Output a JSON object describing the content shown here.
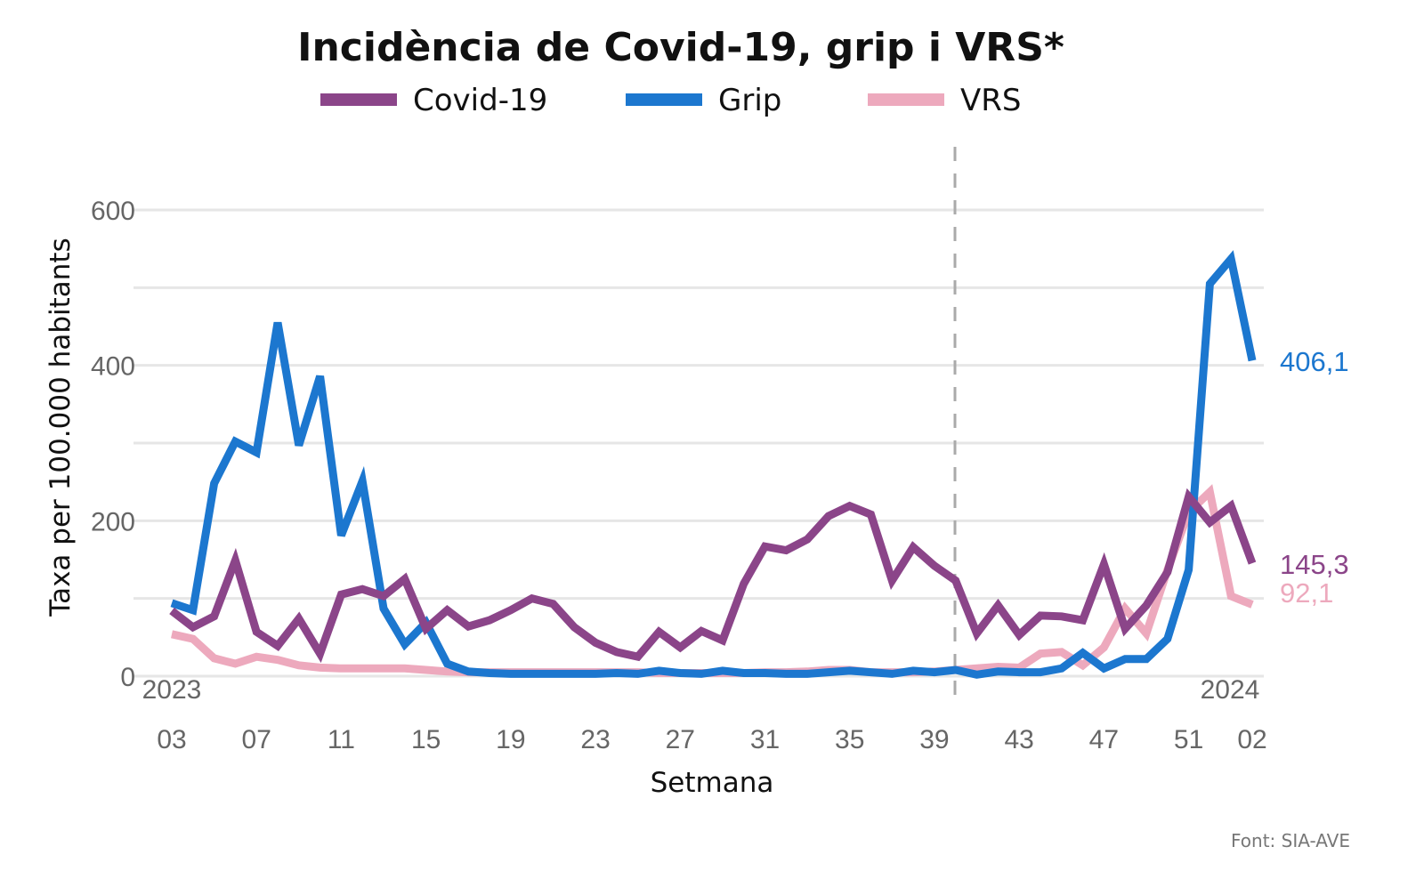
{
  "chart_data": {
    "type": "line",
    "title": "Incidència de Covid-19, grip i VRS*",
    "xlabel": "Setmana",
    "ylabel": "Taxa per 100.000 habitants",
    "source": "Font: SIA-AVE",
    "ylim": [
      0,
      600
    ],
    "yticks": [
      "0",
      "200",
      "400",
      "600"
    ],
    "grid": true,
    "legend_position": "top",
    "year_labels": {
      "start": "2023",
      "end": "2024"
    },
    "year_break_after_week": "40",
    "x": [
      "03",
      "04",
      "05",
      "06",
      "07",
      "08",
      "09",
      "10",
      "11",
      "12",
      "13",
      "14",
      "15",
      "16",
      "17",
      "18",
      "19",
      "20",
      "21",
      "22",
      "23",
      "24",
      "25",
      "26",
      "27",
      "28",
      "29",
      "30",
      "31",
      "32",
      "33",
      "34",
      "35",
      "36",
      "37",
      "38",
      "39",
      "40",
      "41",
      "42",
      "43",
      "44",
      "45",
      "46",
      "47",
      "48",
      "49",
      "50",
      "51",
      "52",
      "01",
      "02"
    ],
    "xticks": [
      "03",
      "07",
      "11",
      "15",
      "19",
      "23",
      "27",
      "31",
      "35",
      "39",
      "43",
      "47",
      "51",
      "02"
    ],
    "series": [
      {
        "name": "Covid-19",
        "color": "#8b4589",
        "end_label": "145,3",
        "values": [
          84,
          63,
          77,
          149,
          57,
          39,
          74,
          29,
          105,
          112,
          103,
          125,
          61,
          85,
          64,
          72,
          85,
          100,
          93,
          63,
          43,
          31,
          25,
          57,
          37,
          58,
          46,
          119,
          167,
          162,
          176,
          206,
          219,
          208,
          123,
          166,
          142,
          123,
          55,
          91,
          53,
          78,
          77,
          72,
          144,
          61,
          91,
          134,
          231,
          198,
          219,
          145.3
        ]
      },
      {
        "name": "Grip",
        "color": "#1c77cf",
        "end_label": "406,1",
        "values": [
          94,
          85,
          248,
          302,
          288,
          455,
          297,
          386,
          181,
          251,
          87,
          41,
          69,
          16,
          6,
          4,
          3,
          3,
          3,
          3,
          3,
          4,
          3,
          7,
          4,
          3,
          7,
          4,
          4,
          3,
          3,
          5,
          7,
          5,
          3,
          7,
          5,
          8,
          2,
          6,
          5,
          5,
          10,
          30,
          10,
          22,
          22,
          48,
          137,
          505,
          537,
          406.1
        ]
      },
      {
        "name": "VRS",
        "color": "#eda9bd",
        "end_label": "92,1",
        "values": [
          54,
          48,
          23,
          16,
          25,
          21,
          14,
          11,
          10,
          10,
          10,
          10,
          8,
          6,
          5,
          5,
          5,
          5,
          5,
          5,
          5,
          5,
          5,
          4,
          4,
          4,
          4,
          4,
          5,
          5,
          6,
          8,
          8,
          5,
          5,
          5,
          6,
          8,
          10,
          12,
          11,
          29,
          31,
          14,
          37,
          87,
          55,
          137,
          211,
          237,
          103,
          92.1
        ]
      }
    ]
  }
}
